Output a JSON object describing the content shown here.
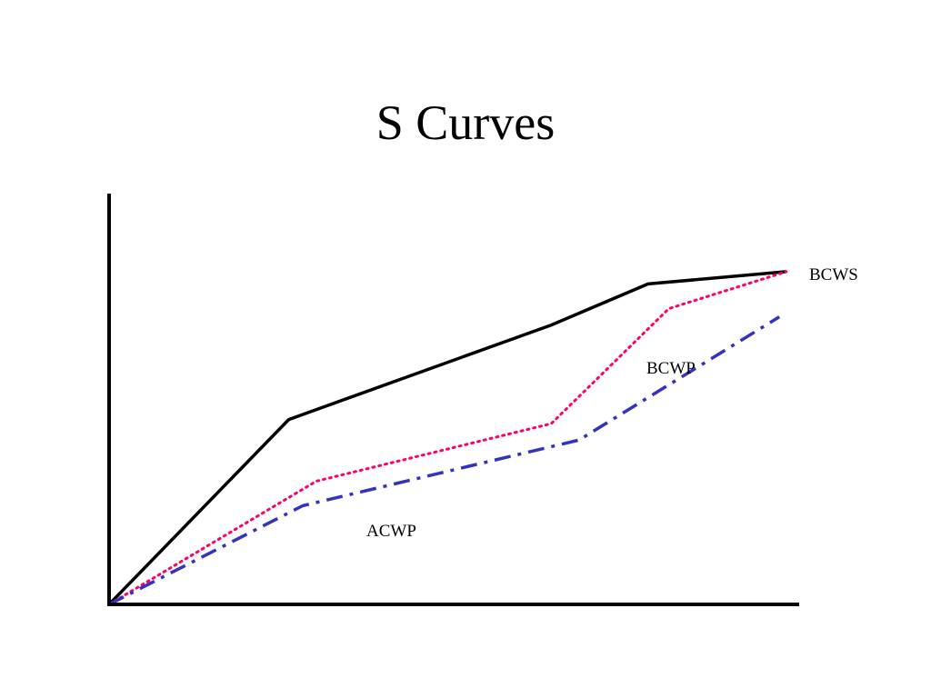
{
  "slide": {
    "title": "S Curves"
  },
  "chart_data": {
    "type": "line",
    "title": "S Curves",
    "xlabel": "",
    "ylabel": "",
    "xlim": [
      0,
      100
    ],
    "ylim": [
      0,
      100
    ],
    "grid": false,
    "axes_tick_labels": false,
    "series": [
      {
        "name": "BCWS",
        "color": "#000000",
        "style": "solid",
        "points": [
          [
            0,
            0
          ],
          [
            26,
            45
          ],
          [
            64,
            68
          ],
          [
            78,
            78
          ],
          [
            98,
            81
          ]
        ]
      },
      {
        "name": "BCWP",
        "color": "#ff0066",
        "style": "dotted",
        "points": [
          [
            0,
            0
          ],
          [
            30,
            30
          ],
          [
            64,
            44
          ],
          [
            81,
            72
          ],
          [
            98,
            81
          ]
        ]
      },
      {
        "name": "ACWP",
        "color": "#3333bb",
        "style": "dash-dot",
        "points": [
          [
            0,
            0
          ],
          [
            28,
            24
          ],
          [
            68,
            40
          ],
          [
            97,
            70
          ]
        ]
      }
    ]
  }
}
